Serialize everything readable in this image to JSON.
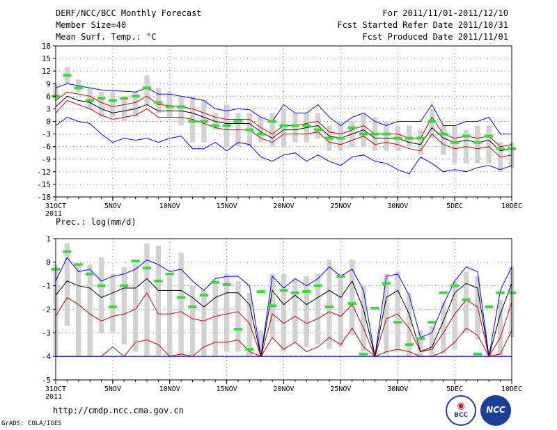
{
  "header": {
    "title": "DERF/NCC/BCC Monthly Forecast",
    "member_size": "Member Size=40",
    "variable": "Mean Surf. Temp.: °C",
    "period": "For 2011/11/01-2011/12/10",
    "started": "Fcst Started Refer Date 2011/10/31",
    "produced": "Fcst Produced Date 2011/11/01"
  },
  "chart_data": [
    {
      "type": "line",
      "title": "Mean Surf. Temp.: °C",
      "ylabel": "°C",
      "ylim": [
        -18,
        18
      ],
      "yticks": [
        "18",
        "15",
        "12",
        "9",
        "6",
        "3",
        "0",
        "-3",
        "-6",
        "-9",
        "-12",
        "-15",
        "-18"
      ],
      "ytick_values": [
        18,
        15,
        12,
        9,
        6,
        3,
        0,
        -3,
        -6,
        -9,
        -12,
        -15,
        -18
      ],
      "xlim": [
        0,
        40
      ],
      "xtick_days": [
        0,
        5,
        10,
        15,
        20,
        25,
        30,
        35,
        40
      ],
      "xticks": [
        "31OCT",
        "5NOV",
        "10NOV",
        "15NOV",
        "20NOV",
        "25NOV",
        "30NOV",
        "5DEC",
        "10DEC"
      ],
      "x_year": "2011",
      "grid": true,
      "series": [
        {
          "name": "max",
          "color": "#0000ff",
          "values": [
            8,
            9,
            8.5,
            8,
            7.5,
            7.3,
            7.2,
            7,
            8,
            6.5,
            6.5,
            6,
            5.5,
            5,
            3,
            2.5,
            3,
            2.8,
            1,
            0,
            4,
            2,
            2,
            4,
            1,
            -1,
            1,
            2,
            0,
            -1,
            0,
            0,
            0,
            4,
            -1,
            -1,
            0,
            0,
            1,
            -3,
            -3
          ]
        },
        {
          "name": "upper",
          "color": "#cc0000",
          "values": [
            5,
            7,
            6.5,
            6,
            4.5,
            3.5,
            4,
            4.5,
            6,
            4,
            3.8,
            3.5,
            3,
            2,
            1,
            0.5,
            0.5,
            0.5,
            -1.5,
            -3,
            -1,
            -1,
            -0.5,
            0,
            -2.5,
            -3,
            -2,
            -1,
            -3,
            -3,
            -3,
            -4,
            -4,
            1,
            -3,
            -4,
            -3.5,
            -4,
            -3.5,
            -6,
            -5.5
          ]
        },
        {
          "name": "mean",
          "color": "#000000",
          "values": [
            3.5,
            6,
            5,
            4.5,
            3,
            2,
            2.5,
            3,
            4,
            2.5,
            2.5,
            2.5,
            2,
            1,
            0,
            -0.5,
            -0.5,
            -0.5,
            -2.5,
            -4,
            -2,
            -2,
            -1.5,
            -1,
            -3.5,
            -4,
            -3,
            -2,
            -4,
            -4,
            -4,
            -5,
            -5.5,
            -1.5,
            -4,
            -5,
            -4.5,
            -5,
            -4.5,
            -7,
            -6.5
          ]
        },
        {
          "name": "lower",
          "color": "#cc0000",
          "values": [
            2,
            5,
            4,
            3,
            1.5,
            0.5,
            1,
            1.5,
            3,
            1,
            1,
            1,
            0.5,
            -0.5,
            -1.5,
            -2,
            -2,
            -2,
            -4,
            -5,
            -3,
            -3,
            -3,
            -2.5,
            -5,
            -5.5,
            -4.5,
            -3.5,
            -5.5,
            -5,
            -5.5,
            -6.5,
            -7,
            -3,
            -5.5,
            -6.5,
            -6,
            -6.5,
            -6,
            -8.5,
            -8
          ]
        },
        {
          "name": "min",
          "color": "#0000ff",
          "values": [
            -1,
            1,
            0,
            -0.5,
            -3,
            -5,
            -4,
            -4.5,
            -4,
            -5,
            -4,
            -3.5,
            -6.5,
            -6.5,
            -5,
            -7,
            -5,
            -5.5,
            -8.5,
            -9.5,
            -8,
            -7.5,
            -9.5,
            -8,
            -9.5,
            -10.5,
            -8.5,
            -8,
            -9.5,
            -10,
            -11.5,
            -12.5,
            -8.5,
            -10,
            -12,
            -11.5,
            -12,
            -11,
            -10.5,
            -11.5,
            -10.5
          ]
        }
      ],
      "bars": [
        [
          5,
          9
        ],
        [
          9,
          13
        ],
        [
          7,
          10
        ],
        [
          3,
          8
        ],
        [
          1,
          7
        ],
        [
          1,
          7
        ],
        [
          0,
          6
        ],
        [
          1,
          7
        ],
        [
          4,
          11
        ],
        [
          2,
          8
        ],
        [
          1,
          7
        ],
        [
          -1,
          6
        ],
        [
          -5,
          6
        ],
        [
          -5,
          5
        ],
        [
          -2,
          2
        ],
        [
          -6,
          4
        ],
        [
          -6,
          2
        ],
        [
          -6,
          2
        ],
        [
          -5,
          1
        ],
        [
          -6,
          2
        ],
        [
          -6,
          3
        ],
        [
          -5,
          2
        ],
        [
          -5,
          2
        ],
        [
          -4,
          2
        ],
        [
          -7,
          -1
        ],
        [
          -7,
          0
        ],
        [
          -6,
          0
        ],
        [
          -6,
          2
        ],
        [
          -7,
          1
        ],
        [
          -7,
          0
        ],
        [
          -7,
          -1
        ],
        [
          -6,
          -1
        ],
        [
          -8,
          -2
        ],
        [
          -4,
          3
        ],
        [
          -8,
          -1
        ],
        [
          -10,
          -1
        ],
        [
          -10,
          -2
        ],
        [
          -10,
          -1
        ],
        [
          -10,
          -1
        ],
        [
          -12,
          -5
        ],
        [
          -11,
          -5
        ]
      ],
      "observed": [
        6,
        11,
        8,
        5,
        5.5,
        5,
        5.5,
        6,
        8,
        4.5,
        3.5,
        3.5,
        0,
        0,
        -1,
        -1,
        0,
        -2,
        -3,
        0,
        -1,
        -1,
        -1,
        -2,
        -4,
        -4,
        -1.5,
        -3,
        -3,
        -3,
        -4,
        -4,
        -4,
        0,
        -3,
        -5,
        -3.5,
        -5,
        -3.5,
        -6.5,
        -6.5
      ]
    },
    {
      "type": "line",
      "title": "Prec.: log(mm/d)",
      "ylabel": "log(mm/d)",
      "ylim": [
        -5,
        1
      ],
      "yticks": [
        "1",
        "0",
        "-1",
        "-2",
        "-3",
        "-4",
        "-5"
      ],
      "ytick_values": [
        1,
        0,
        -1,
        -2,
        -3,
        -4,
        -5
      ],
      "xlim": [
        0,
        40
      ],
      "xtick_days": [
        0,
        5,
        10,
        15,
        20,
        25,
        30,
        35,
        40
      ],
      "xticks": [
        "31OCT",
        "5NOV",
        "10NOV",
        "15NOV",
        "20NOV",
        "25NOV",
        "30NOV",
        "5DEC",
        "10DEC"
      ],
      "x_year": "2011",
      "grid": true,
      "reference_line": -4,
      "series": [
        {
          "name": "max",
          "color": "#0000ff",
          "values": [
            -0.8,
            0.2,
            -0.4,
            -0.3,
            -0.8,
            -0.6,
            -0.5,
            -0.3,
            0.1,
            -0.1,
            -0.4,
            -0.3,
            -0.8,
            -1.2,
            -0.7,
            -0.6,
            -0.6,
            -1,
            -4,
            -0.6,
            -1.1,
            -0.7,
            -1,
            -0.7,
            -0.2,
            -0.6,
            -0.3,
            -1.2,
            -4,
            -0.6,
            -0.5,
            -1.4,
            -3.2,
            -3,
            -1.8,
            -0.8,
            -0.2,
            -0.4,
            -4,
            -1.2,
            -0.2
          ]
        },
        {
          "name": "upper",
          "color": "#cc0000",
          "values": [
            -2.3,
            -1.5,
            -1.8,
            -2.2,
            -2.5,
            -2.3,
            -2.2,
            -2,
            -1.3,
            -2.2,
            -2.2,
            -2.1,
            -2.4,
            -2.5,
            -2.3,
            -2.2,
            -2.1,
            -2.6,
            -4,
            -2.2,
            -2.6,
            -2.3,
            -2.6,
            -2.4,
            -2.1,
            -2.3,
            -1.8,
            -2.8,
            -4,
            -2.4,
            -2.2,
            -2.8,
            -3.8,
            -3.7,
            -3,
            -2.2,
            -1.6,
            -1.9,
            -4,
            -3.2,
            -1.7
          ]
        },
        {
          "name": "mean",
          "color": "#000000",
          "values": [
            -1.4,
            -0.8,
            -1,
            -1.1,
            -1.5,
            -1.3,
            -1.1,
            -1.1,
            -0.7,
            -1.2,
            -1.2,
            -1.2,
            -1.5,
            -1.9,
            -1.5,
            -1.3,
            -1.3,
            -1.8,
            -4,
            -1.2,
            -1.8,
            -1.4,
            -1.8,
            -1.5,
            -1.2,
            -1.5,
            -0.8,
            -2,
            -4,
            -1.5,
            -1.2,
            -2.2,
            -3.8,
            -3.6,
            -2.5,
            -1.3,
            -0.9,
            -1.1,
            -4,
            -2.2,
            -0.9
          ]
        },
        {
          "name": "lower",
          "color": "#cc0000",
          "values": [
            -4,
            -4,
            -4,
            -4,
            -4,
            -3.6,
            -4,
            -3.4,
            -3.3,
            -3.5,
            -4,
            -3.9,
            -4,
            -3.6,
            -3.4,
            -3.4,
            -3.3,
            -3.8,
            -4,
            -3.2,
            -3.7,
            -3.4,
            -3.8,
            -3.6,
            -3.2,
            -3.5,
            -2.8,
            -3.6,
            -4,
            -3.8,
            -3.7,
            -3.8,
            -4,
            -4,
            -3.8,
            -3.4,
            -2.8,
            -3.1,
            -4,
            -3.9,
            -2.9
          ]
        },
        {
          "name": "min",
          "color": "#0000ff",
          "values": [
            -4,
            -4,
            -4,
            -4,
            -4,
            -4,
            -4,
            -4,
            -4,
            -4,
            -4,
            -4,
            -4,
            -4,
            -4,
            -4,
            -4,
            -4,
            -4,
            -4,
            -4,
            -4,
            -4,
            -4,
            -4,
            -4,
            -4,
            -4,
            -4,
            -4,
            -4,
            -4,
            -4,
            -4,
            -4,
            -4,
            -4,
            -4,
            -4,
            -4,
            -4
          ]
        }
      ],
      "bars": [
        [
          -4,
          -0.1
        ],
        [
          -2.7,
          0.8
        ],
        [
          -4,
          -0.1
        ],
        [
          -4,
          -0.1
        ],
        [
          -3,
          0.2
        ],
        [
          -3,
          -0.5
        ],
        [
          -3.5,
          -0.2
        ],
        [
          -3.8,
          -0.1
        ],
        [
          -4,
          0.8
        ],
        [
          -4,
          0.7
        ],
        [
          -4,
          -0.6
        ],
        [
          -4,
          0.4
        ],
        [
          -4,
          -1
        ],
        [
          -4,
          -1.2
        ],
        [
          -4,
          -0.9
        ],
        [
          -3.8,
          -0.5
        ],
        [
          -3.8,
          -0.8
        ],
        [
          -4,
          -1.3
        ],
        [
          -4,
          -2.9
        ],
        [
          -3.2,
          -0.5
        ],
        [
          -3.8,
          -0.5
        ],
        [
          -3.4,
          -0.7
        ],
        [
          -3.6,
          -0.6
        ],
        [
          -3.5,
          -0.5
        ],
        [
          -3.7,
          0.1
        ],
        [
          -3.6,
          -0.5
        ],
        [
          -3.1,
          0.1
        ],
        [
          -3.8,
          -1
        ],
        [
          -4,
          -3.8
        ],
        [
          -3.9,
          -0.5
        ],
        [
          -3.8,
          -0.4
        ],
        [
          -4,
          -1.3
        ],
        [
          -4,
          -2.9
        ],
        [
          -4,
          -2.7
        ],
        [
          -3.9,
          -1.7
        ],
        [
          -3.7,
          -0.8
        ],
        [
          -3,
          -0.4
        ],
        [
          -3.3,
          -0.6
        ],
        [
          -4,
          -3.8
        ],
        [
          -4,
          -1.6
        ],
        [
          -3.2,
          -0.2
        ]
      ],
      "observed": [
        -0.3,
        0.45,
        -0.1,
        -0.5,
        -1,
        -1.9,
        -1,
        0.05,
        -0.25,
        -0.8,
        -0.5,
        -1.5,
        -1.9,
        -1.4,
        -0.85,
        -0.95,
        -2.85,
        -3.7,
        -1.25,
        -1.85,
        -1.2,
        -1.3,
        -1.25,
        -1,
        -1.9,
        -0.6,
        -1.75,
        -3.9,
        -1.95,
        -0.9,
        -2.55,
        -3.5,
        -3.25,
        -2.55,
        -1.3,
        -1,
        -1.6,
        -3.9,
        -1.9,
        -1.3,
        -1.3
      ]
    }
  ],
  "footer": {
    "precip_label": "Prec.: log(mm/d)",
    "url": "http://cmdp.ncc.cma.gov.cn",
    "grads": "GrADS: COLA/IGES",
    "logo_bcc": "BCC",
    "logo_ncc": "NCC"
  },
  "colors": {
    "bar": "#d2d2d2",
    "observed": "#33dd33",
    "max_min": "#0000ff",
    "spread": "#cc0000",
    "mean": "#000000",
    "grid": "#777777"
  }
}
